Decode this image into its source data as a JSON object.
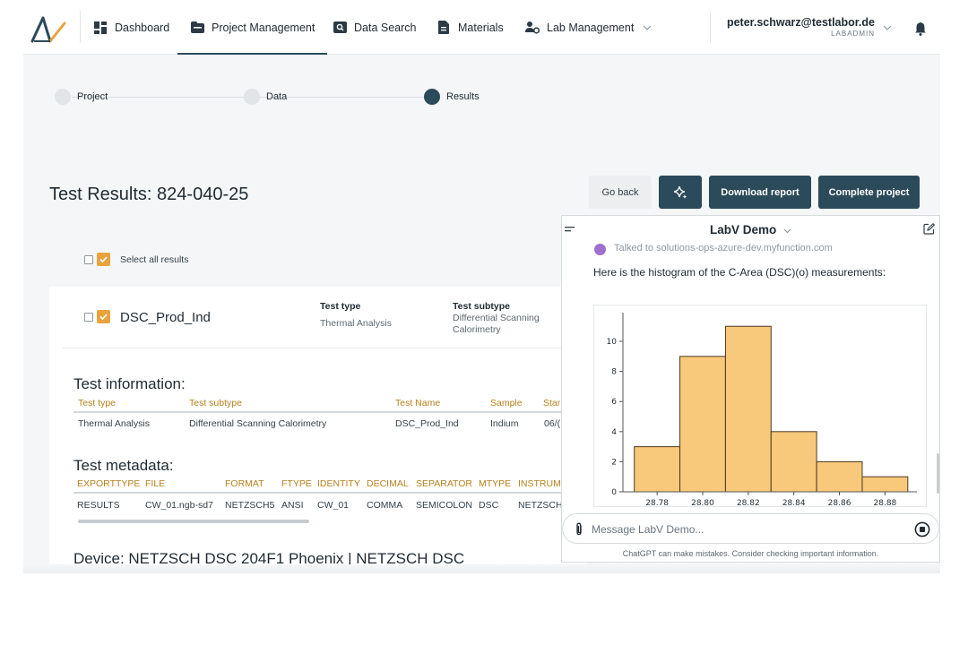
{
  "nav": {
    "items": [
      {
        "label": "Dashboard",
        "icon": "dashboard-icon"
      },
      {
        "label": "Project Management",
        "icon": "folder-icon",
        "active": true
      },
      {
        "label": "Data Search",
        "icon": "search-icon"
      },
      {
        "label": "Materials",
        "icon": "document-icon"
      },
      {
        "label": "Lab Management",
        "icon": "people-gear-icon"
      }
    ],
    "user_email": "peter.schwarz@testlabor.de",
    "user_role": "LABADMIN"
  },
  "stepper": {
    "steps": [
      {
        "label": "Project",
        "state": "done"
      },
      {
        "label": "Data",
        "state": "done"
      },
      {
        "label": "Results",
        "state": "active"
      }
    ]
  },
  "header": {
    "title": "Test Results: 824-040-25",
    "go_back": "Go back",
    "download_report": "Download report",
    "complete_project": "Complete project"
  },
  "select_all_label": "Select all results",
  "test": {
    "name": "DSC_Prod_Ind",
    "type_label": "Test type",
    "type_value": "Thermal Analysis",
    "subtype_label": "Test subtype",
    "subtype_value_line1": "Differential Scanning",
    "subtype_value_line2": "Calorimetry"
  },
  "test_information": {
    "heading": "Test information:",
    "columns": [
      "Test type",
      "Test subtype",
      "Test Name",
      "Sample",
      "Star"
    ],
    "row": [
      "Thermal Analysis",
      "Differential Scanning Calorimetry",
      "DSC_Prod_Ind",
      "Indium",
      "06/("
    ]
  },
  "test_metadata": {
    "heading": "Test metadata:",
    "columns": [
      "EXPORTTYPE",
      "FILE",
      "FORMAT",
      "FTYPE",
      "IDENTITY",
      "DECIMAL",
      "SEPARATOR",
      "MTYPE",
      "INSTRUM"
    ],
    "row": [
      "RESULTS",
      "CW_01.ngb-sd7",
      "NETZSCH5",
      "ANSI",
      "CW_01",
      "COMMA",
      "SEMICOLON",
      "DSC",
      "NETZSCH"
    ]
  },
  "device_title": "Device: NETZSCH DSC 204F1 Phoenix | NETZSCH DSC",
  "chat": {
    "title": "LabV Demo",
    "previous_line": "Talked to solutions-ops-azure-dev.myfunction.com",
    "message": "Here is the histogram of the C-Area (DSC)(o) measurements:",
    "placeholder": "Message LabV Demo...",
    "disclaimer": "ChatGPT can make mistakes. Consider checking important information."
  },
  "colors": {
    "accent": "#2b4a5a",
    "highlight": "#e8a33d",
    "bar_fill": "#f8c97a",
    "bar_stroke": "#4a3a20"
  },
  "chart_data": {
    "type": "bar",
    "title": "",
    "xlabel": "",
    "ylabel": "",
    "bin_edges": [
      28.77,
      28.79,
      28.81,
      28.83,
      28.85,
      28.87,
      28.89
    ],
    "values": [
      3,
      9,
      11,
      4,
      2,
      1
    ],
    "x_ticks": [
      28.78,
      28.8,
      28.82,
      28.84,
      28.86,
      28.88
    ],
    "x_tick_labels": [
      "28.78",
      "28.80",
      "28.82",
      "28.84",
      "28.86",
      "28.88"
    ],
    "y_ticks": [
      0,
      2,
      4,
      6,
      8,
      10
    ],
    "xlim": [
      28.765,
      28.894
    ],
    "ylim": [
      0,
      11.55
    ],
    "grid": false,
    "legend": "none"
  }
}
